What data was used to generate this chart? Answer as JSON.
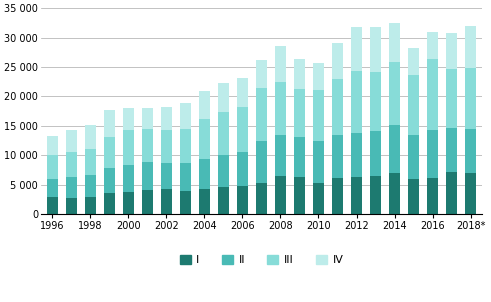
{
  "years": [
    1996,
    1997,
    1998,
    1999,
    2000,
    2001,
    2002,
    2003,
    2004,
    2005,
    2006,
    2007,
    2008,
    2009,
    2010,
    2011,
    2012,
    2013,
    2014,
    2015,
    2016,
    2017,
    2018
  ],
  "Q1": [
    2900,
    2700,
    2900,
    3500,
    3700,
    4100,
    4200,
    3900,
    4300,
    4500,
    4700,
    5200,
    6400,
    6200,
    5200,
    6100,
    6200,
    6400,
    6900,
    6000,
    6100,
    7100,
    6900
  ],
  "Q2": [
    3100,
    3500,
    3800,
    4300,
    4600,
    4800,
    4500,
    4700,
    5000,
    5500,
    5800,
    7200,
    7000,
    6800,
    7200,
    7400,
    7600,
    7700,
    8200,
    7500,
    8100,
    7500,
    7600
  ],
  "Q3": [
    4000,
    4300,
    4400,
    5200,
    5900,
    5500,
    5500,
    5900,
    6800,
    7300,
    7700,
    9000,
    9000,
    8200,
    8600,
    9400,
    10500,
    10000,
    10800,
    10200,
    12100,
    10000,
    10300
  ],
  "Q4": [
    3200,
    3800,
    4000,
    4600,
    3900,
    3600,
    4000,
    4300,
    4800,
    5000,
    4900,
    4700,
    6200,
    5100,
    4700,
    6100,
    7500,
    7700,
    6600,
    4600,
    4600,
    6200,
    7200
  ],
  "colors": [
    "#1d7a70",
    "#49bab5",
    "#87dcd8",
    "#bdecea"
  ],
  "ylim": [
    0,
    35000
  ],
  "yticks": [
    0,
    5000,
    10000,
    15000,
    20000,
    25000,
    30000,
    35000
  ],
  "xtick_years": [
    1996,
    1998,
    2000,
    2002,
    2004,
    2006,
    2008,
    2010,
    2012,
    2014,
    2016,
    2018
  ],
  "legend_labels": [
    "I",
    "II",
    "III",
    "IV"
  ],
  "bar_width": 0.6
}
